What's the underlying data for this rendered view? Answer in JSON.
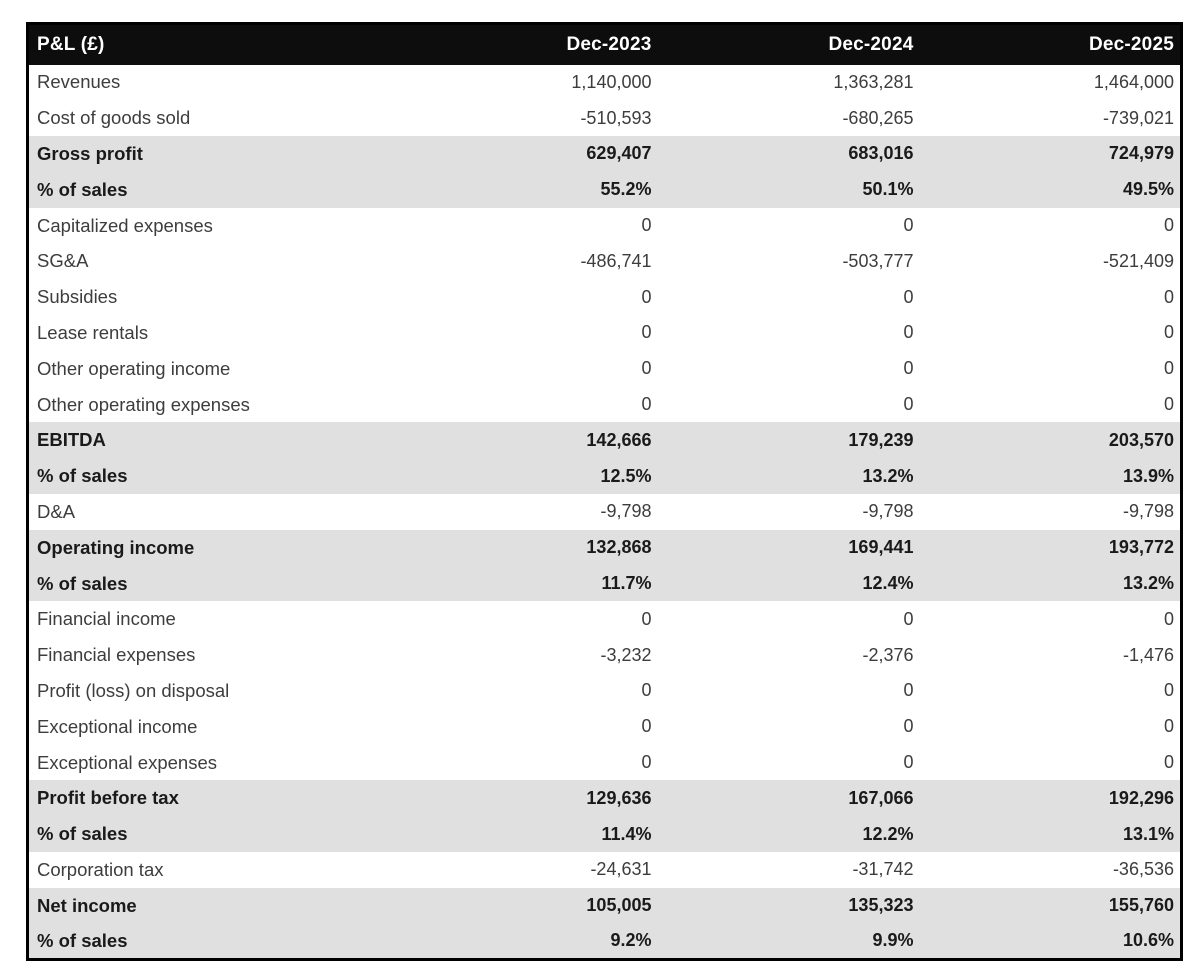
{
  "table": {
    "title_cell": "P&L (£)",
    "columns": [
      "Dec-2023",
      "Dec-2024",
      "Dec-2025"
    ],
    "rows": [
      {
        "label": "Revenues",
        "values": [
          "1,140,000",
          "1,363,281",
          "1,464,000"
        ],
        "emphasis": false
      },
      {
        "label": "Cost of goods sold",
        "values": [
          "-510,593",
          "-680,265",
          "-739,021"
        ],
        "emphasis": false
      },
      {
        "label": "Gross profit",
        "values": [
          "629,407",
          "683,016",
          "724,979"
        ],
        "emphasis": true
      },
      {
        "label": "% of sales",
        "values": [
          "55.2%",
          "50.1%",
          "49.5%"
        ],
        "emphasis": true
      },
      {
        "label": "Capitalized expenses",
        "values": [
          "0",
          "0",
          "0"
        ],
        "emphasis": false
      },
      {
        "label": "SG&A",
        "values": [
          "-486,741",
          "-503,777",
          "-521,409"
        ],
        "emphasis": false
      },
      {
        "label": "Subsidies",
        "values": [
          "0",
          "0",
          "0"
        ],
        "emphasis": false
      },
      {
        "label": "Lease rentals",
        "values": [
          "0",
          "0",
          "0"
        ],
        "emphasis": false
      },
      {
        "label": "Other operating income",
        "values": [
          "0",
          "0",
          "0"
        ],
        "emphasis": false
      },
      {
        "label": "Other operating expenses",
        "values": [
          "0",
          "0",
          "0"
        ],
        "emphasis": false
      },
      {
        "label": "EBITDA",
        "values": [
          "142,666",
          "179,239",
          "203,570"
        ],
        "emphasis": true
      },
      {
        "label": "% of sales",
        "values": [
          "12.5%",
          "13.2%",
          "13.9%"
        ],
        "emphasis": true
      },
      {
        "label": "D&A",
        "values": [
          "-9,798",
          "-9,798",
          "-9,798"
        ],
        "emphasis": false
      },
      {
        "label": "Operating income",
        "values": [
          "132,868",
          "169,441",
          "193,772"
        ],
        "emphasis": true
      },
      {
        "label": "% of sales",
        "values": [
          "11.7%",
          "12.4%",
          "13.2%"
        ],
        "emphasis": true
      },
      {
        "label": "Financial income",
        "values": [
          "0",
          "0",
          "0"
        ],
        "emphasis": false
      },
      {
        "label": "Financial expenses",
        "values": [
          "-3,232",
          "-2,376",
          "-1,476"
        ],
        "emphasis": false
      },
      {
        "label": "Profit (loss) on disposal",
        "values": [
          "0",
          "0",
          "0"
        ],
        "emphasis": false
      },
      {
        "label": "Exceptional income",
        "values": [
          "0",
          "0",
          "0"
        ],
        "emphasis": false
      },
      {
        "label": "Exceptional expenses",
        "values": [
          "0",
          "0",
          "0"
        ],
        "emphasis": false
      },
      {
        "label": "Profit before tax",
        "values": [
          "129,636",
          "167,066",
          "192,296"
        ],
        "emphasis": true
      },
      {
        "label": "% of sales",
        "values": [
          "11.4%",
          "12.2%",
          "13.1%"
        ],
        "emphasis": true
      },
      {
        "label": "Corporation tax",
        "values": [
          "-24,631",
          "-31,742",
          "-36,536"
        ],
        "emphasis": false
      },
      {
        "label": "Net income",
        "values": [
          "105,005",
          "135,323",
          "155,760"
        ],
        "emphasis": true
      },
      {
        "label": "% of sales",
        "values": [
          "9.2%",
          "9.9%",
          "10.6%"
        ],
        "emphasis": true
      }
    ]
  },
  "colors": {
    "header_bg": "#0d0d0d",
    "header_text": "#ffffff",
    "emphasis_row_bg": "#e0e0e0",
    "body_text": "#3d3d3d",
    "emphasis_text": "#1a1a1a",
    "table_border": "#000000"
  }
}
